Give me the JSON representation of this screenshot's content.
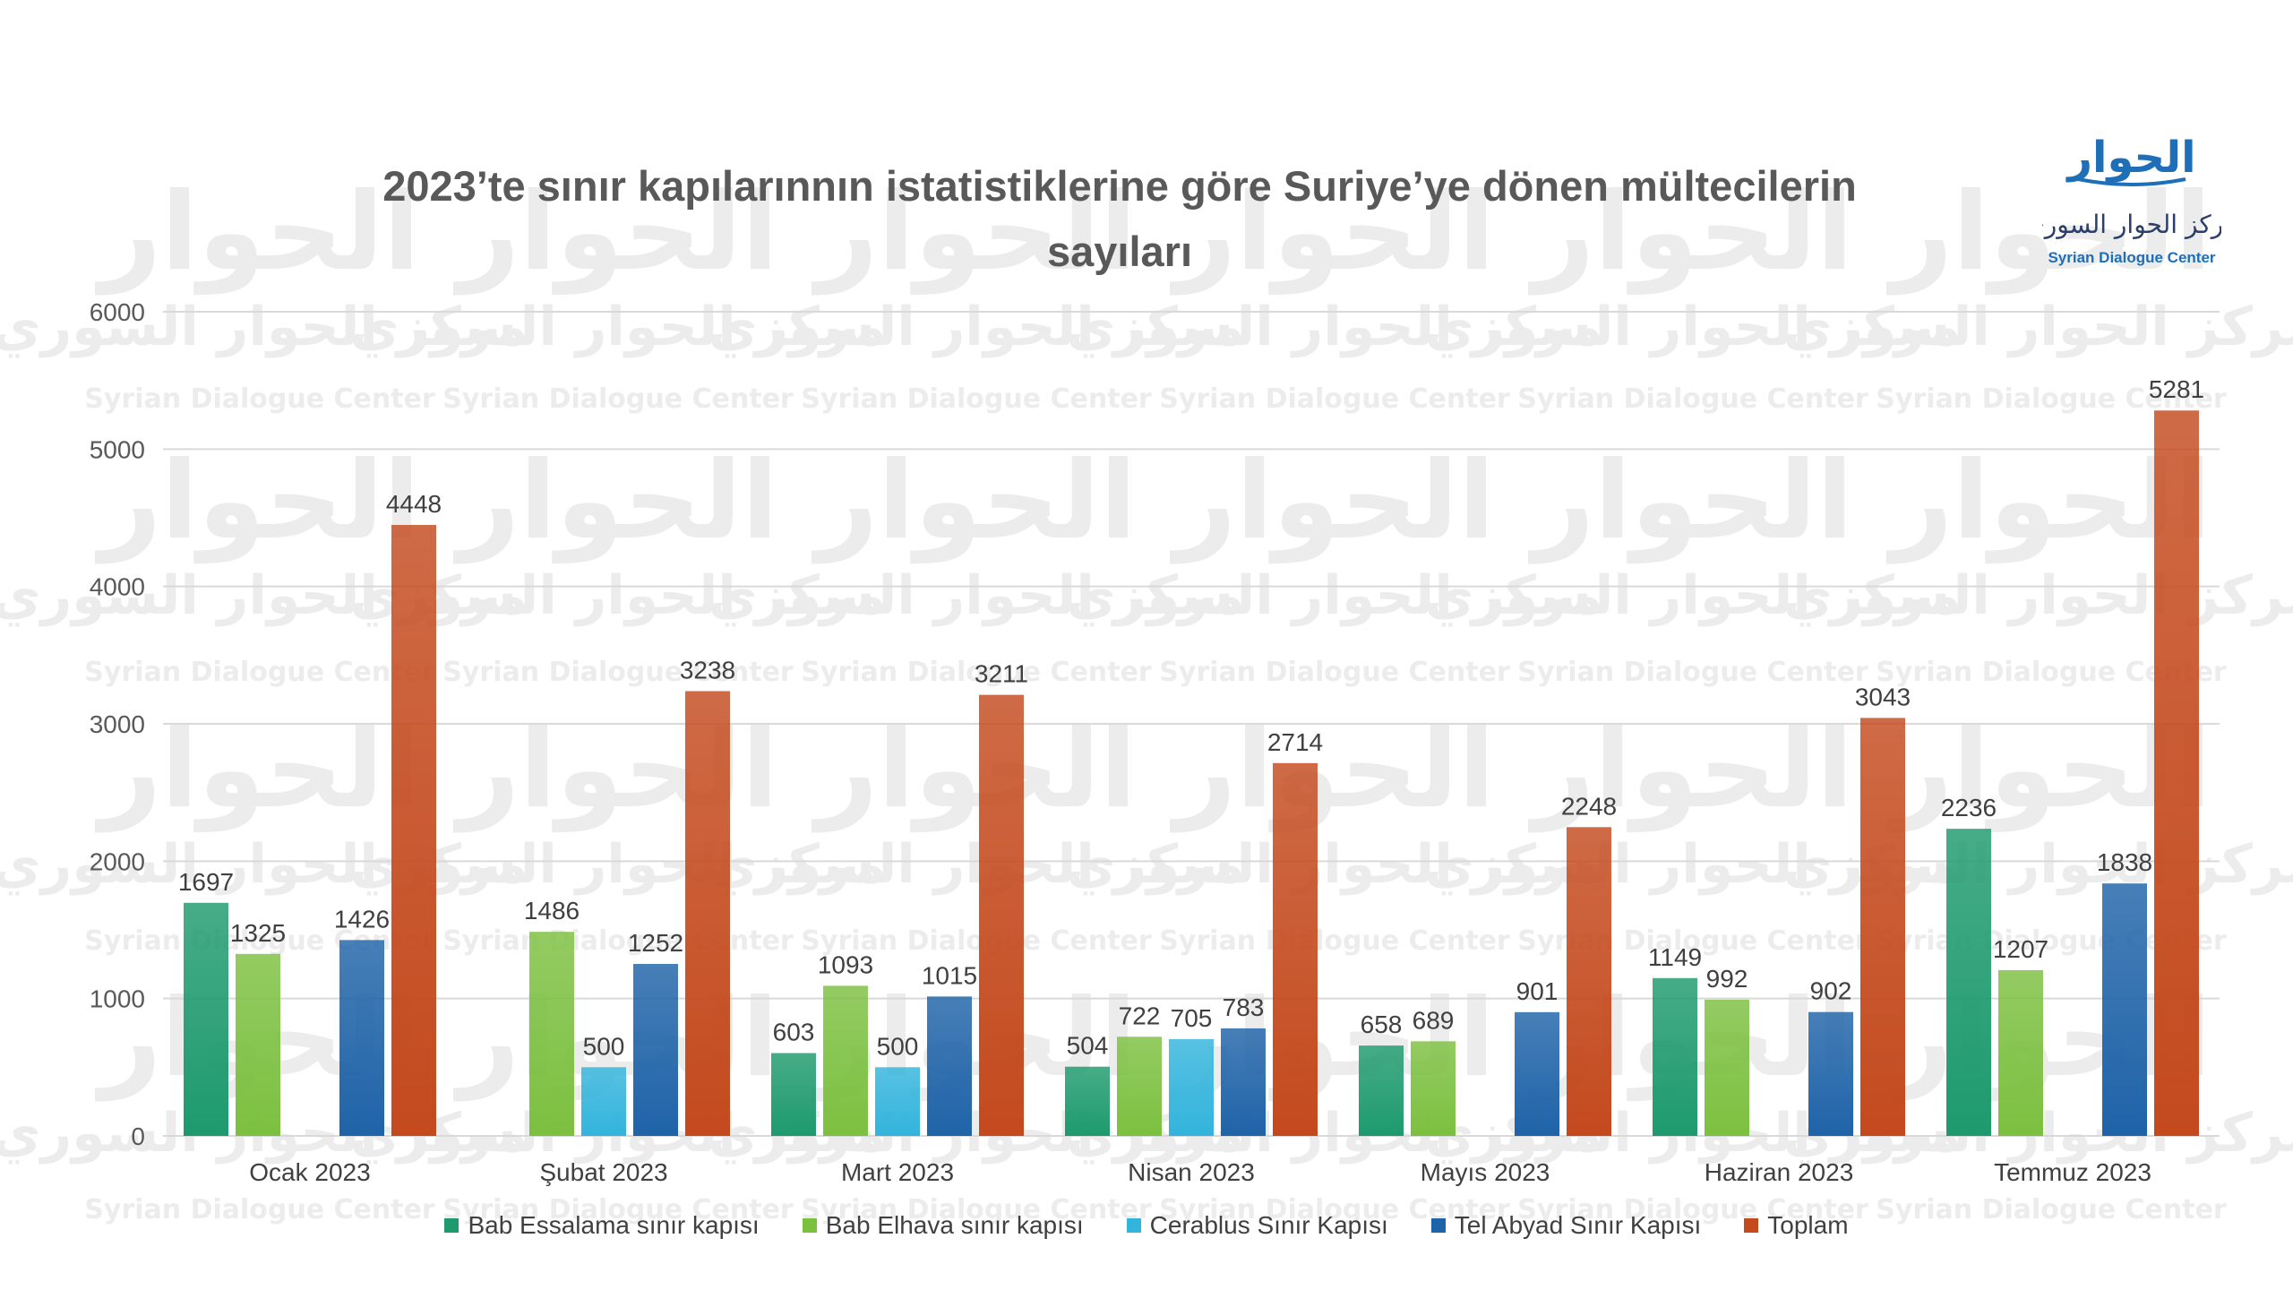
{
  "brand": {
    "wordmark": "الحوار",
    "arabic_name": "مركز الحوار السوري",
    "english_name": "Syrian Dialogue Center"
  },
  "colors": {
    "bab_essalama": "#1e9a6e",
    "bab_elhava": "#7cc040",
    "cerablus": "#33b4dc",
    "tel_abyad": "#1f63a8",
    "toplam": "#c44a1e",
    "grid": "#d9d9d9",
    "watermark": "#ececec",
    "logo_blue": "#1f6fb8"
  },
  "chart_data": {
    "type": "bar",
    "title": "2023’te sınır kapılarınnın istatistiklerine göre Suriye’ye dönen mültecilerin sayıları",
    "title_lines": [
      "2023’te sınır kapılarınnın istatistiklerine göre Suriye’ye dönen mültecilerin",
      "sayıları"
    ],
    "categories": [
      "Ocak 2023",
      "Şubat 2023",
      "Mart 2023",
      "Nisan 2023",
      "Mayıs 2023",
      "Haziran 2023",
      "Temmuz 2023"
    ],
    "series": [
      {
        "name": "Bab Essalama sınır kapısı",
        "values": [
          1697,
          null,
          603,
          504,
          658,
          1149,
          2236
        ]
      },
      {
        "name": "Bab Elhava sınır kapısı",
        "values": [
          1325,
          1486,
          1093,
          722,
          689,
          992,
          1207
        ]
      },
      {
        "name": "Cerablus Sınır Kapısı",
        "values": [
          null,
          500,
          500,
          705,
          null,
          null,
          null
        ]
      },
      {
        "name": "Tel Abyad Sınır Kapısı",
        "values": [
          1426,
          1252,
          1015,
          783,
          901,
          902,
          1838
        ]
      },
      {
        "name": "Toplam",
        "values": [
          4448,
          3238,
          3211,
          2714,
          2248,
          3043,
          5281
        ]
      }
    ],
    "ylim": [
      0,
      6000
    ],
    "yticks": [
      0,
      1000,
      2000,
      3000,
      4000,
      5000,
      6000
    ],
    "xlabel": "",
    "ylabel": "",
    "grid": true,
    "legend_position": "bottom"
  }
}
